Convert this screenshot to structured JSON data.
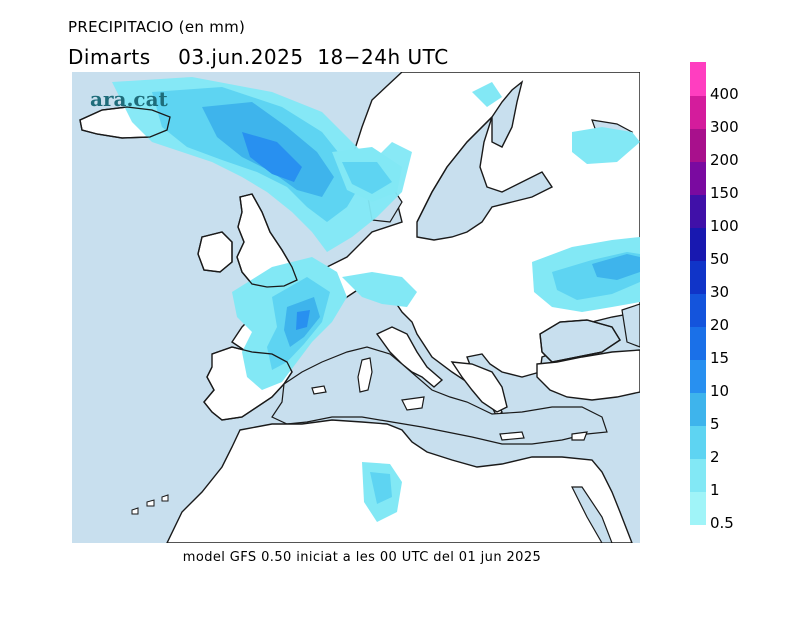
{
  "header": {
    "title": "PRECIPITACIO (en mm)",
    "day": "Dimarts",
    "date": "03.jun.2025",
    "period": "18−24h UTC"
  },
  "map": {
    "watermark": "ara.cat",
    "colors": {
      "sea": "#c8dfee",
      "land": "#ffffff",
      "coast": "#1a1a1a"
    }
  },
  "footer": {
    "caption": "model GFS 0.50 iniciat a les 00 UTC del 01 jun 2025"
  },
  "legend": {
    "levels": [
      {
        "label": "0.5",
        "color": "#a0f4f8"
      },
      {
        "label": "1",
        "color": "#82e8f5"
      },
      {
        "label": "2",
        "color": "#5ed4f2"
      },
      {
        "label": "5",
        "color": "#3eb4ec"
      },
      {
        "label": "10",
        "color": "#2890f0"
      },
      {
        "label": "15",
        "color": "#1a70e8"
      },
      {
        "label": "20",
        "color": "#1454dc"
      },
      {
        "label": "30",
        "color": "#1034c8"
      },
      {
        "label": "50",
        "color": "#1818b0"
      },
      {
        "label": "100",
        "color": "#4010a8"
      },
      {
        "label": "150",
        "color": "#7a0aa0"
      },
      {
        "label": "200",
        "color": "#a8108c"
      },
      {
        "label": "300",
        "color": "#d41c9c"
      },
      {
        "label": "400",
        "color": "#ff3ec0"
      }
    ]
  }
}
